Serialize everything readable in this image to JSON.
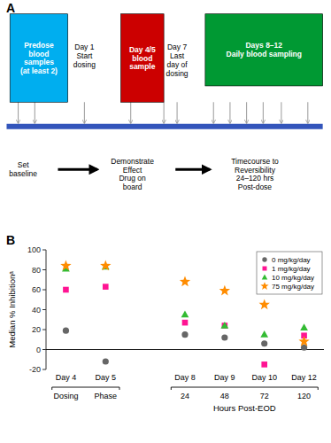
{
  "chart_data": [
    {
      "type": "diagram",
      "title": "A",
      "annotations": [
        "Predose\nblood\nsamples\n(at least 2)",
        "Day 4/5\nblood\nsample",
        "Days 8–12\nDaily blood sampling",
        "Day 1\nStart\ndosing",
        "Day 7\nLast\nday of\ndosing",
        "Set\nbaseline",
        "Demonstrate\nEffect\nDrug on\nboard",
        "Timecourse to\nReversibility\n24–120 hrs\nPost-dose"
      ],
      "colors": [
        "#00AEEF",
        "#CC0000",
        "#009933"
      ]
    },
    {
      "type": "scatter",
      "title": "B",
      "categories": [
        "Day 4",
        "Day 5",
        null,
        "Day 8",
        "Day 9",
        "Day 10",
        "Day 12"
      ],
      "series": [
        {
          "name": "0 mg/kg/day",
          "color": "#666666",
          "marker": "circle",
          "values": [
            19,
            -12,
            null,
            15,
            12,
            6,
            2
          ]
        },
        {
          "name": "1 mg/kg/day",
          "color": "#FF1493",
          "marker": "square",
          "values": [
            60,
            63,
            null,
            27,
            24,
            -15,
            14
          ]
        },
        {
          "name": "10 mg/kg/day",
          "color": "#33BB33",
          "marker": "triangle",
          "values": [
            81,
            83,
            null,
            35,
            24,
            15,
            22
          ]
        },
        {
          "name": "75 mg/kg/day",
          "color": "#FF8C00",
          "marker": "star",
          "values": [
            84,
            84,
            null,
            68,
            59,
            45,
            8
          ]
        }
      ],
      "ylim": [
        -20,
        100
      ],
      "yticks": [
        -20,
        0,
        20,
        40,
        60,
        80,
        100
      ],
      "ylabel": "Median % Inhibitionᵃ",
      "xlabel": "Hours Post-EOD",
      "annotations": [
        "Dosing",
        "Phase",
        "24",
        "48",
        "72",
        "120"
      ],
      "legend": "upper right",
      "grid": false
    }
  ]
}
